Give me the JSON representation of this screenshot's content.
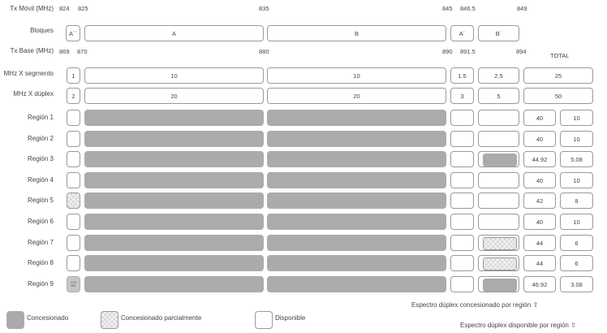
{
  "tx_movil": {
    "label": "Tx Móvil (MHz)",
    "ticks": [
      "824",
      "825",
      "835",
      "845",
      "846.5",
      "849"
    ]
  },
  "bloques": {
    "label": "Bloques",
    "items": [
      "A´´",
      "A",
      "B",
      "A´",
      "B´"
    ]
  },
  "tx_base": {
    "label": "Tx Base (MHz)",
    "ticks": [
      "869",
      "870",
      "880",
      "890",
      "891.5",
      "894"
    ],
    "total_label": "TOTAL"
  },
  "segmento": {
    "label": "MHz X segmento",
    "values": [
      "1",
      "10",
      "10",
      "1.5",
      "2.5",
      "25"
    ]
  },
  "duplex": {
    "label": "MHz X dúplex",
    "values": [
      "2",
      "20",
      "20",
      "3",
      "5",
      "50"
    ]
  },
  "regions": [
    {
      "name": "Región 1",
      "c0": "empty",
      "c4": "empty",
      "concesionado": "40",
      "disponible": "10"
    },
    {
      "name": "Región 2",
      "c0": "empty",
      "c4": "empty",
      "concesionado": "40",
      "disponible": "10"
    },
    {
      "name": "Región 3",
      "c0": "empty",
      "c4": "partial-gray",
      "concesionado": "44.92",
      "disponible": "5.08"
    },
    {
      "name": "Región 4",
      "c0": "empty",
      "c4": "empty",
      "concesionado": "40",
      "disponible": "10"
    },
    {
      "name": "Región 5",
      "c0": "hatch",
      "c4": "empty",
      "concesionado": "42",
      "disponible": "8"
    },
    {
      "name": "Región 6",
      "c0": "empty",
      "c4": "empty",
      "concesionado": "40",
      "disponible": "10"
    },
    {
      "name": "Región 7",
      "c0": "empty",
      "c4": "hatch",
      "concesionado": "44",
      "disponible": "6"
    },
    {
      "name": "Región 8",
      "c0": "empty",
      "c4": "hatch",
      "concesionado": "44",
      "disponible": "6"
    },
    {
      "name": "Región 9",
      "c0": "gray-text",
      "c0_text": [
        "CSI",
        "MX"
      ],
      "c4": "partial-gray",
      "concesionado": "46.92",
      "disponible": "3.08"
    }
  ],
  "notes": {
    "concesionado": "Espectro dúplex concesionado por región ⇧",
    "disponible": "Espectro dúplex disponible por región ⇧"
  },
  "legend": [
    {
      "label": "Concesionado",
      "style": "gray"
    },
    {
      "label": "Concesionado parcialmente",
      "style": "hatch"
    },
    {
      "label": "Disponible",
      "style": "empty"
    }
  ],
  "colors": {
    "gray": "#ababab",
    "border": "#9a9a9a"
  }
}
